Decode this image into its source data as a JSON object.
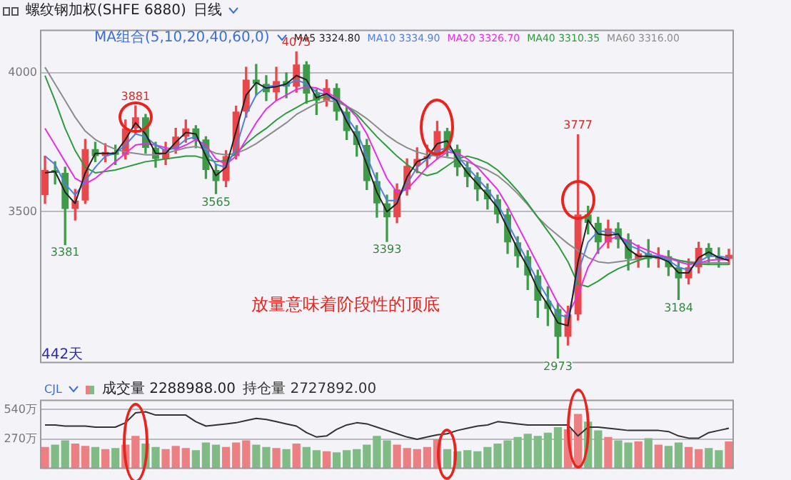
{
  "chart_data": [
    {
      "type": "candlestick",
      "title": "螺纹钢加权(SHFE 6880)",
      "subtitle": "日线",
      "legend_title": "MA组合(5,10,20,40,60,0)",
      "legend": "top",
      "grid": "y",
      "tick_labels": "y",
      "ylim": [
        2955,
        4155
      ],
      "yticks": [
        3500,
        4000
      ],
      "categories": [
        null,
        null,
        null,
        null,
        null,
        null,
        null,
        null,
        null,
        null,
        null,
        null,
        null,
        null,
        null,
        null,
        null,
        null,
        null,
        null,
        null,
        null,
        null,
        null,
        null,
        null,
        null,
        null,
        null,
        null,
        null,
        null,
        null,
        null,
        null,
        null,
        null,
        null,
        null,
        null,
        null,
        null,
        null,
        null,
        null,
        null,
        null,
        null,
        null,
        null,
        null,
        null,
        null,
        null,
        null,
        null,
        null,
        null,
        null,
        null,
        null,
        null,
        null,
        null,
        null,
        null,
        null,
        null,
        null
      ],
      "ohlc": [
        [
          3560,
          3700,
          3530,
          3650
        ],
        [
          3650,
          3680,
          3600,
          3640
        ],
        [
          3640,
          3660,
          3381,
          3510
        ],
        [
          3510,
          3580,
          3470,
          3540
        ],
        [
          3540,
          3760,
          3530,
          3725
        ],
        [
          3725,
          3750,
          3680,
          3700
        ],
        [
          3700,
          3745,
          3680,
          3715
        ],
        [
          3715,
          3740,
          3670,
          3705
        ],
        [
          3705,
          3830,
          3690,
          3800
        ],
        [
          3800,
          3881,
          3780,
          3840
        ],
        [
          3840,
          3850,
          3710,
          3730
        ],
        [
          3730,
          3750,
          3660,
          3690
        ],
        [
          3690,
          3750,
          3670,
          3725
        ],
        [
          3725,
          3800,
          3710,
          3770
        ],
        [
          3770,
          3830,
          3750,
          3800
        ],
        [
          3800,
          3810,
          3730,
          3760
        ],
        [
          3760,
          3770,
          3620,
          3650
        ],
        [
          3650,
          3670,
          3565,
          3610
        ],
        [
          3610,
          3720,
          3590,
          3700
        ],
        [
          3700,
          3880,
          3690,
          3860
        ],
        [
          3860,
          4020,
          3840,
          3975
        ],
        [
          3975,
          4030,
          3920,
          3960
        ],
        [
          3960,
          3990,
          3900,
          3930
        ],
        [
          3930,
          4020,
          3900,
          3970
        ],
        [
          3970,
          4000,
          3910,
          3950
        ],
        [
          3950,
          4075,
          3930,
          4030
        ],
        [
          4030,
          4040,
          3890,
          3925
        ],
        [
          3925,
          3940,
          3850,
          3900
        ],
        [
          3900,
          3975,
          3880,
          3945
        ],
        [
          3945,
          3960,
          3830,
          3860
        ],
        [
          3860,
          3880,
          3760,
          3790
        ],
        [
          3790,
          3810,
          3700,
          3740
        ],
        [
          3740,
          3760,
          3580,
          3610
        ],
        [
          3610,
          3640,
          3480,
          3530
        ],
        [
          3530,
          3560,
          3393,
          3480
        ],
        [
          3480,
          3600,
          3460,
          3580
        ],
        [
          3580,
          3690,
          3560,
          3665
        ],
        [
          3665,
          3730,
          3640,
          3690
        ],
        [
          3690,
          3740,
          3660,
          3700
        ],
        [
          3700,
          3825,
          3690,
          3790
        ],
        [
          3790,
          3800,
          3700,
          3725
        ],
        [
          3725,
          3740,
          3630,
          3660
        ],
        [
          3660,
          3680,
          3590,
          3625
        ],
        [
          3625,
          3640,
          3540,
          3580
        ],
        [
          3580,
          3600,
          3510,
          3545
        ],
        [
          3545,
          3560,
          3460,
          3490
        ],
        [
          3490,
          3510,
          3350,
          3390
        ],
        [
          3390,
          3410,
          3300,
          3340
        ],
        [
          3340,
          3360,
          3220,
          3270
        ],
        [
          3270,
          3290,
          3120,
          3180
        ],
        [
          3180,
          3230,
          3090,
          3150
        ],
        [
          3150,
          3170,
          2973,
          3050
        ],
        [
          3050,
          3160,
          3020,
          3130
        ],
        [
          3130,
          3777,
          3110,
          3490
        ],
        [
          3490,
          3520,
          3420,
          3460
        ],
        [
          3460,
          3480,
          3350,
          3390
        ],
        [
          3390,
          3470,
          3370,
          3440
        ],
        [
          3440,
          3460,
          3370,
          3400
        ],
        [
          3400,
          3420,
          3290,
          3330
        ],
        [
          3330,
          3380,
          3300,
          3350
        ],
        [
          3350,
          3400,
          3300,
          3330
        ],
        [
          3330,
          3370,
          3300,
          3340
        ],
        [
          3340,
          3360,
          3270,
          3300
        ],
        [
          3300,
          3320,
          3184,
          3260
        ],
        [
          3260,
          3330,
          3240,
          3300
        ],
        [
          3300,
          3390,
          3280,
          3370
        ],
        [
          3370,
          3385,
          3310,
          3340
        ],
        [
          3340,
          3370,
          3300,
          3330
        ],
        [
          3330,
          3365,
          3310,
          3345
        ]
      ],
      "colors": [
        "#e8474c",
        "#3f9b4a",
        "#3f9b4a",
        "#e8474c",
        "#e8474c",
        "#3f9b4a",
        "#e8474c",
        "#3f9b4a",
        "#e8474c",
        "#e8474c",
        "#3f9b4a",
        "#3f9b4a",
        "#e8474c",
        "#e8474c",
        "#e8474c",
        "#3f9b4a",
        "#3f9b4a",
        "#3f9b4a",
        "#e8474c",
        "#e8474c",
        "#e8474c",
        "#3f9b4a",
        "#3f9b4a",
        "#e8474c",
        "#3f9b4a",
        "#e8474c",
        "#3f9b4a",
        "#3f9b4a",
        "#e8474c",
        "#3f9b4a",
        "#3f9b4a",
        "#3f9b4a",
        "#3f9b4a",
        "#3f9b4a",
        "#3f9b4a",
        "#e8474c",
        "#e8474c",
        "#e8474c",
        "#e8474c",
        "#e8474c",
        "#3f9b4a",
        "#3f9b4a",
        "#3f9b4a",
        "#3f9b4a",
        "#3f9b4a",
        "#3f9b4a",
        "#3f9b4a",
        "#3f9b4a",
        "#3f9b4a",
        "#3f9b4a",
        "#3f9b4a",
        "#3f9b4a",
        "#e8474c",
        "#e8474c",
        "#3f9b4a",
        "#3f9b4a",
        "#e8474c",
        "#3f9b4a",
        "#3f9b4a",
        "#e8474c",
        "#3f9b4a",
        "#e8474c",
        "#3f9b4a",
        "#3f9b4a",
        "#e8474c",
        "#e8474c",
        "#3f9b4a",
        "#3f9b4a",
        "#e8474c"
      ],
      "series": [
        {
          "name": "MA5 3324.80",
          "type": "line",
          "color": "#222222",
          "values": [
            3640,
            3645,
            3570,
            3530,
            3640,
            3710,
            3710,
            3710,
            3760,
            3820,
            3780,
            3710,
            3710,
            3750,
            3785,
            3780,
            3700,
            3630,
            3660,
            3790,
            3920,
            3965,
            3945,
            3950,
            3960,
            3990,
            3975,
            3910,
            3925,
            3900,
            3825,
            3765,
            3670,
            3570,
            3500,
            3530,
            3625,
            3680,
            3695,
            3745,
            3755,
            3690,
            3640,
            3600,
            3560,
            3515,
            3440,
            3365,
            3300,
            3220,
            3165,
            3100,
            3090,
            3320,
            3470,
            3420,
            3415,
            3420,
            3365,
            3340,
            3340,
            3335,
            3320,
            3280,
            3280,
            3335,
            3355,
            3335,
            3325
          ]
        },
        {
          "name": "MA10 3334.90",
          "type": "line",
          "color": "#4f7fe0",
          "values": [
            3700,
            3670,
            3600,
            3560,
            3610,
            3660,
            3700,
            3710,
            3740,
            3780,
            3770,
            3740,
            3720,
            3730,
            3760,
            3770,
            3720,
            3670,
            3660,
            3730,
            3850,
            3920,
            3950,
            3955,
            3955,
            3975,
            3960,
            3930,
            3920,
            3895,
            3840,
            3790,
            3700,
            3610,
            3540,
            3540,
            3600,
            3660,
            3690,
            3720,
            3730,
            3700,
            3660,
            3620,
            3580,
            3530,
            3460,
            3390,
            3320,
            3250,
            3190,
            3130,
            3120,
            3280,
            3390,
            3430,
            3430,
            3420,
            3380,
            3365,
            3345,
            3340,
            3325,
            3300,
            3290,
            3320,
            3340,
            3340,
            3335
          ]
        },
        {
          "name": "MA20 3326.70",
          "type": "line",
          "color": "#e52ee5",
          "values": [
            3800,
            3740,
            3680,
            3620,
            3600,
            3620,
            3650,
            3680,
            3710,
            3740,
            3745,
            3740,
            3730,
            3725,
            3740,
            3760,
            3740,
            3690,
            3670,
            3700,
            3760,
            3820,
            3870,
            3900,
            3920,
            3940,
            3950,
            3945,
            3930,
            3910,
            3880,
            3840,
            3780,
            3700,
            3620,
            3570,
            3580,
            3620,
            3660,
            3690,
            3715,
            3710,
            3690,
            3660,
            3620,
            3580,
            3520,
            3450,
            3380,
            3310,
            3240,
            3170,
            3130,
            3200,
            3300,
            3360,
            3400,
            3410,
            3395,
            3375,
            3360,
            3345,
            3335,
            3320,
            3310,
            3315,
            3325,
            3328,
            3327
          ]
        },
        {
          "name": "MA40 3310.35",
          "type": "line",
          "color": "#2e9a3e",
          "values": [
            3990,
            3900,
            3800,
            3720,
            3660,
            3640,
            3645,
            3650,
            3660,
            3670,
            3680,
            3685,
            3690,
            3695,
            3700,
            3700,
            3690,
            3680,
            3685,
            3710,
            3745,
            3775,
            3800,
            3830,
            3855,
            3875,
            3895,
            3905,
            3915,
            3905,
            3880,
            3850,
            3810,
            3770,
            3735,
            3700,
            3670,
            3645,
            3630,
            3640,
            3665,
            3690,
            3700,
            3690,
            3675,
            3650,
            3615,
            3575,
            3530,
            3480,
            3430,
            3380,
            3320,
            3240,
            3230,
            3250,
            3275,
            3295,
            3310,
            3325,
            3335,
            3340,
            3335,
            3325,
            3318,
            3312,
            3310,
            3310,
            3310
          ]
        },
        {
          "name": "MA60 3316.00",
          "type": "line",
          "color": "#8c8c8c",
          "values": [
            4020,
            3960,
            3900,
            3840,
            3790,
            3760,
            3740,
            3725,
            3715,
            3710,
            3705,
            3705,
            3710,
            3720,
            3730,
            3735,
            3725,
            3710,
            3705,
            3710,
            3725,
            3745,
            3770,
            3795,
            3820,
            3850,
            3870,
            3890,
            3900,
            3895,
            3880,
            3860,
            3835,
            3805,
            3775,
            3750,
            3730,
            3715,
            3705,
            3700,
            3695,
            3690,
            3680,
            3665,
            3650,
            3630,
            3600,
            3565,
            3525,
            3480,
            3445,
            3415,
            3385,
            3360,
            3335,
            3320,
            3315,
            3320,
            3325,
            3330,
            3335,
            3335,
            3330,
            3325,
            3320,
            3318,
            3316,
            3316,
            3316
          ]
        }
      ],
      "annotations": [
        "放量意味着阶段性的顶底",
        "442天",
        {
          "text": "3381",
          "y": 3381
        },
        {
          "text": "3881",
          "y": 3881
        },
        {
          "text": "3565",
          "y": 3565
        },
        {
          "text": "4075",
          "y": 4075
        },
        {
          "text": "3393",
          "y": 3393
        },
        {
          "text": "3777",
          "y": 3777
        },
        {
          "text": "2973",
          "y": 2973
        },
        {
          "text": "3184",
          "y": 3184
        }
      ]
    },
    {
      "type": "bar",
      "title": "CJL",
      "legend": "top left",
      "grid": "y",
      "tick_labels": "y",
      "ylim": [
        0,
        630
      ],
      "yticks": [
        {
          "value": 270,
          "label": "270万"
        },
        {
          "value": 540,
          "label": "540万"
        }
      ],
      "categories": [
        null,
        null,
        null,
        null,
        null,
        null,
        null,
        null,
        null,
        null,
        null,
        null,
        null,
        null,
        null,
        null,
        null,
        null,
        null,
        null,
        null,
        null,
        null,
        null,
        null,
        null,
        null,
        null,
        null,
        null,
        null,
        null,
        null,
        null,
        null,
        null,
        null,
        null,
        null,
        null,
        null,
        null,
        null,
        null,
        null,
        null,
        null,
        null,
        null,
        null,
        null,
        null,
        null,
        null,
        null,
        null,
        null,
        null,
        null,
        null,
        null,
        null,
        null,
        null,
        null,
        null,
        null,
        null,
        null
      ],
      "series": [
        {
          "name": "成交量 2288988.00",
          "type": "bar",
          "colors": [
            "#ec7f82",
            "#80bb86",
            "#80bb86",
            "#ec7f82",
            "#ec7f82",
            "#80bb86",
            "#ec7f82",
            "#80bb86",
            "#ec7f82",
            "#ec7f82",
            "#80bb86",
            "#80bb86",
            "#ec7f82",
            "#ec7f82",
            "#ec7f82",
            "#80bb86",
            "#80bb86",
            "#80bb86",
            "#ec7f82",
            "#ec7f82",
            "#ec7f82",
            "#80bb86",
            "#80bb86",
            "#ec7f82",
            "#80bb86",
            "#ec7f82",
            "#80bb86",
            "#80bb86",
            "#ec7f82",
            "#80bb86",
            "#80bb86",
            "#80bb86",
            "#80bb86",
            "#80bb86",
            "#80bb86",
            "#ec7f82",
            "#ec7f82",
            "#ec7f82",
            "#ec7f82",
            "#ec7f82",
            "#80bb86",
            "#80bb86",
            "#80bb86",
            "#80bb86",
            "#80bb86",
            "#80bb86",
            "#80bb86",
            "#80bb86",
            "#80bb86",
            "#80bb86",
            "#80bb86",
            "#80bb86",
            "#ec7f82",
            "#ec7f82",
            "#80bb86",
            "#80bb86",
            "#ec7f82",
            "#80bb86",
            "#80bb86",
            "#ec7f82",
            "#80bb86",
            "#ec7f82",
            "#80bb86",
            "#80bb86",
            "#ec7f82",
            "#ec7f82",
            "#80bb86",
            "#80bb86",
            "#ec7f82"
          ],
          "values": [
            200,
            220,
            260,
            230,
            210,
            200,
            180,
            190,
            220,
            300,
            230,
            200,
            180,
            210,
            190,
            170,
            240,
            220,
            200,
            240,
            260,
            220,
            200,
            190,
            180,
            230,
            200,
            170,
            160,
            150,
            170,
            180,
            220,
            300,
            260,
            220,
            190,
            180,
            200,
            270,
            180,
            160,
            170,
            160,
            200,
            230,
            260,
            290,
            320,
            300,
            330,
            380,
            360,
            500,
            430,
            350,
            290,
            260,
            240,
            250,
            280,
            220,
            210,
            240,
            200,
            180,
            190,
            170,
            250
          ]
        },
        {
          "name": "持仓量 2727892.00",
          "type": "line",
          "color": "#333333",
          "values": [
            400,
            400,
            390,
            390,
            390,
            380,
            380,
            380,
            420,
            510,
            520,
            490,
            490,
            490,
            490,
            430,
            390,
            400,
            410,
            420,
            440,
            460,
            450,
            430,
            410,
            390,
            330,
            290,
            300,
            360,
            400,
            420,
            410,
            380,
            350,
            320,
            290,
            270,
            290,
            310,
            320,
            350,
            370,
            390,
            400,
            430,
            420,
            410,
            400,
            400,
            400,
            400,
            400,
            300,
            380,
            380,
            370,
            360,
            350,
            350,
            350,
            350,
            340,
            300,
            280,
            280,
            330,
            350,
            370
          ]
        }
      ]
    }
  ]
}
